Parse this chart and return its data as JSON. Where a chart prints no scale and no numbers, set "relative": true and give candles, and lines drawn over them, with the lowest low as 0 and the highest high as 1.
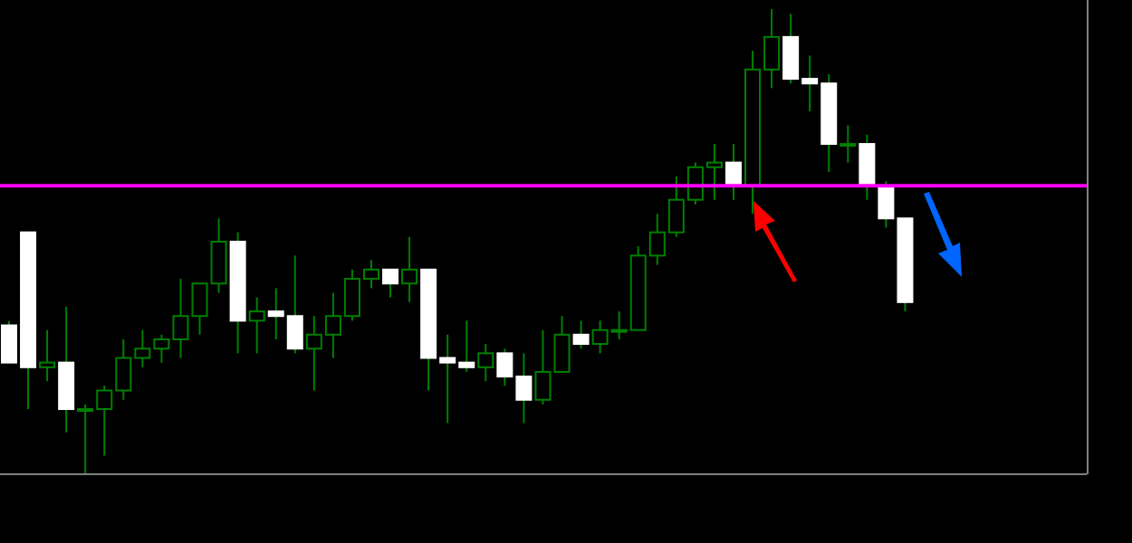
{
  "chart_data": {
    "type": "candlestick",
    "relative": true,
    "categories": [
      null,
      null,
      null,
      null,
      null,
      null,
      null,
      null,
      null,
      null,
      null,
      null,
      null,
      null,
      null,
      null,
      null,
      null,
      null,
      null,
      null,
      null,
      null,
      null,
      null,
      null,
      null,
      null,
      null,
      null,
      null,
      null,
      null,
      null,
      null,
      null,
      null,
      null,
      null,
      null,
      null,
      null,
      null,
      null,
      null,
      null,
      null,
      null
    ],
    "ohlc": [
      [
        0.32,
        0.33,
        0.24,
        0.24
      ],
      [
        0.52,
        0.52,
        0.14,
        0.23
      ],
      [
        0.23,
        0.31,
        0.2,
        0.24
      ],
      [
        0.24,
        0.36,
        0.09,
        0.14
      ],
      [
        0.14,
        0.15,
        0,
        0.14
      ],
      [
        0.14,
        0.19,
        0.04,
        0.18
      ],
      [
        0.18,
        0.29,
        0.16,
        0.25
      ],
      [
        0.25,
        0.31,
        0.23,
        0.27
      ],
      [
        0.27,
        0.3,
        0.24,
        0.29
      ],
      [
        0.29,
        0.42,
        0.25,
        0.34
      ],
      [
        0.34,
        0.41,
        0.3,
        0.41
      ],
      [
        0.41,
        0.55,
        0.39,
        0.5
      ],
      [
        0.5,
        0.52,
        0.26,
        0.33
      ],
      [
        0.33,
        0.38,
        0.26,
        0.35
      ],
      [
        0.35,
        0.4,
        0.29,
        0.34
      ],
      [
        0.34,
        0.47,
        0.26,
        0.27
      ],
      [
        0.27,
        0.34,
        0.18,
        0.3
      ],
      [
        0.3,
        0.39,
        0.25,
        0.34
      ],
      [
        0.34,
        0.44,
        0.33,
        0.42
      ],
      [
        0.42,
        0.46,
        0.4,
        0.44
      ],
      [
        0.44,
        0.44,
        0.38,
        0.41
      ],
      [
        0.41,
        0.51,
        0.37,
        0.44
      ],
      [
        0.44,
        0.44,
        0.18,
        0.25
      ],
      [
        0.25,
        0.3,
        0.11,
        0.24
      ],
      [
        0.24,
        0.33,
        0.22,
        0.23
      ],
      [
        0.23,
        0.28,
        0.2,
        0.26
      ],
      [
        0.26,
        0.27,
        0.19,
        0.21
      ],
      [
        0.21,
        0.26,
        0.11,
        0.16
      ],
      [
        0.16,
        0.31,
        0.15,
        0.22
      ],
      [
        0.22,
        0.34,
        0.22,
        0.3
      ],
      [
        0.3,
        0.33,
        0.27,
        0.28
      ],
      [
        0.28,
        0.33,
        0.26,
        0.31
      ],
      [
        0.31,
        0.35,
        0.29,
        0.31
      ],
      [
        0.31,
        0.49,
        0.31,
        0.47
      ],
      [
        0.47,
        0.56,
        0.45,
        0.52
      ],
      [
        0.52,
        0.64,
        0.51,
        0.59
      ],
      [
        0.59,
        0.67,
        0.58,
        0.66
      ],
      [
        0.66,
        0.71,
        0.59,
        0.67
      ],
      [
        0.67,
        0.71,
        0.59,
        0.62
      ],
      [
        0.62,
        0.91,
        0.56,
        0.87
      ],
      [
        0.87,
        1.0,
        0.83,
        0.94
      ],
      [
        0.94,
        0.99,
        0.84,
        0.85
      ],
      [
        0.85,
        0.9,
        0.78,
        0.84
      ],
      [
        0.84,
        0.86,
        0.65,
        0.71
      ],
      [
        0.71,
        0.75,
        0.67,
        0.71
      ],
      [
        0.71,
        0.73,
        0.59,
        0.62
      ],
      [
        0.62,
        0.63,
        0.53,
        0.55
      ],
      [
        0.55,
        0.55,
        0.35,
        0.37
      ]
    ],
    "colors": [
      "#ffffff",
      "#ffffff",
      "#008000",
      "#ffffff",
      "#008000",
      "#008000",
      "#008000",
      "#008000",
      "#008000",
      "#008000",
      "#008000",
      "#008000",
      "#ffffff",
      "#008000",
      "#ffffff",
      "#ffffff",
      "#008000",
      "#008000",
      "#008000",
      "#008000",
      "#ffffff",
      "#008000",
      "#ffffff",
      "#ffffff",
      "#ffffff",
      "#008000",
      "#ffffff",
      "#ffffff",
      "#008000",
      "#008000",
      "#ffffff",
      "#008000",
      "#008000",
      "#008000",
      "#008000",
      "#008000",
      "#008000",
      "#008000",
      "#ffffff",
      "#008000",
      "#008000",
      "#ffffff",
      "#ffffff",
      "#ffffff",
      "#008000",
      "#ffffff",
      "#ffffff",
      "#ffffff"
    ],
    "ref_lines": [
      {
        "axis": "y",
        "value": 0.62,
        "label": null,
        "color": "#ff00ff"
      }
    ]
  }
}
